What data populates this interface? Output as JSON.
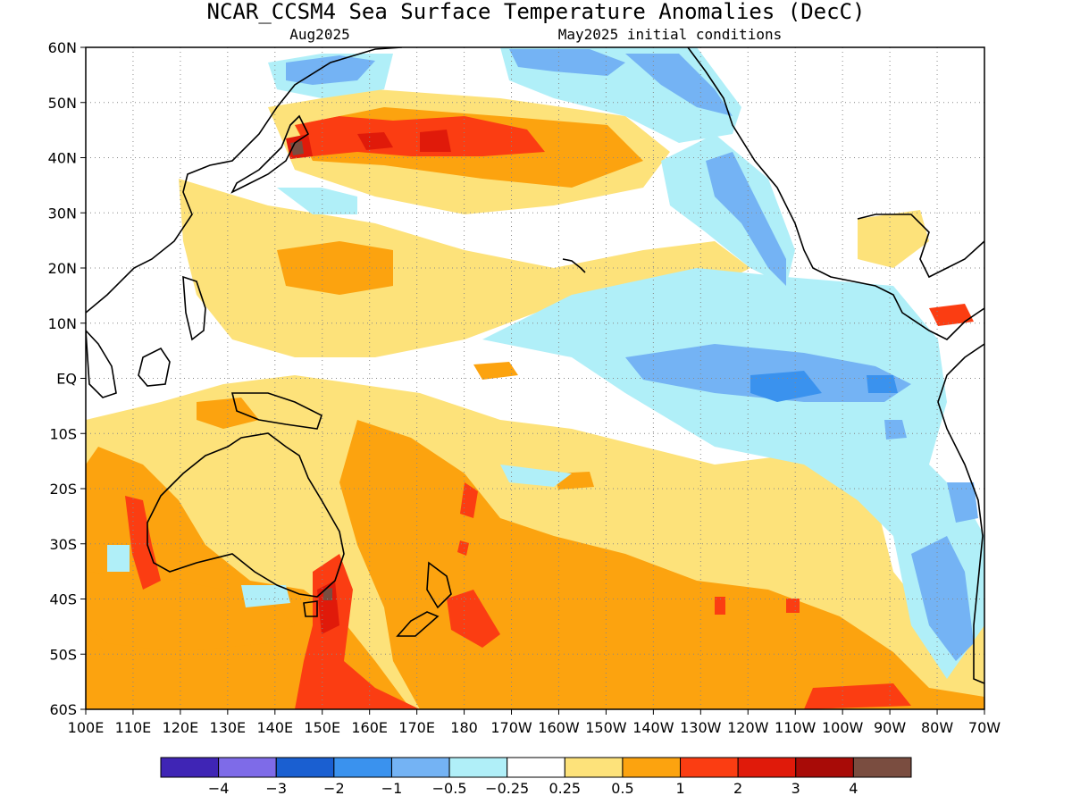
{
  "chart_data": {
    "type": "heatmap",
    "title": "NCAR_CCSM4 Sea Surface Temperature Anomalies (DecC)",
    "subtitle_left": "Aug2025",
    "subtitle_right": "May2025 initial conditions",
    "x_ticks": [
      "100E",
      "110E",
      "120E",
      "130E",
      "140E",
      "150E",
      "160E",
      "170E",
      "180",
      "170W",
      "160W",
      "150W",
      "140W",
      "130W",
      "120W",
      "110W",
      "100W",
      "90W",
      "80W",
      "70W"
    ],
    "y_ticks": [
      "60N",
      "50N",
      "40N",
      "30N",
      "20N",
      "10N",
      "EQ",
      "10S",
      "20S",
      "30S",
      "40S",
      "50S",
      "60S"
    ],
    "lon_range": [
      100,
      290
    ],
    "lat_range": [
      -60,
      60
    ],
    "grid": true,
    "colorbar": {
      "colors": [
        "#3f25b5",
        "#7e6be8",
        "#1a5fd1",
        "#3a92ee",
        "#74b3f4",
        "#b0eff8",
        "#ffffff",
        "#fde27a",
        "#fca30f",
        "#fb3d12",
        "#e01a0a",
        "#a80b07",
        "#7a4d40"
      ],
      "labels": [
        "−4",
        "−3",
        "−2",
        "−1",
        "−0.5",
        "−0.25",
        "0.25",
        "0.5",
        "1",
        "2",
        "3",
        "4"
      ]
    }
  }
}
